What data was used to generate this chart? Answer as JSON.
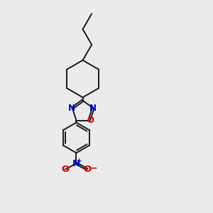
{
  "bg_color": "#ebebeb",
  "bond_color": "#1a1a1a",
  "N_color": "#0000cc",
  "O_color": "#dd0000",
  "font_size_atom": 8.5,
  "line_width": 1.4,
  "figsize": [
    3.0,
    3.0
  ],
  "dpi": 100,
  "xlim": [
    0,
    10
  ],
  "ylim": [
    0,
    10
  ],
  "scale": 1.0
}
